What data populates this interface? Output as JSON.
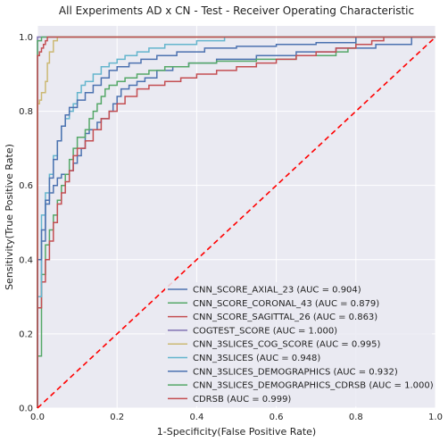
{
  "chart_data": {
    "type": "line",
    "title": "All Experiments AD x CN - Test - Receiver Operating Characteristic",
    "xlabel": "1-Specificity(False Positive Rate)",
    "ylabel": "Sensitivity(True Positive Rate)",
    "xlim": [
      0,
      1
    ],
    "ylim": [
      0,
      1.03
    ],
    "x_ticks": [
      "0.0",
      "0.2",
      "0.4",
      "0.6",
      "0.8",
      "1.0"
    ],
    "y_ticks": [
      "0.0",
      "0.2",
      "0.4",
      "0.6",
      "0.8",
      "1.0"
    ],
    "grid": true,
    "background": "#eaeaf2",
    "legend_position": "lower-right",
    "series": [
      {
        "name": "CNN_SCORE_AXIAL_23 (AUC = 0.904)",
        "color": "#4c72b0",
        "points": [
          [
            0,
            0
          ],
          [
            0,
            0.3
          ],
          [
            0.01,
            0.38
          ],
          [
            0.01,
            0.45
          ],
          [
            0.02,
            0.5
          ],
          [
            0.02,
            0.55
          ],
          [
            0.03,
            0.58
          ],
          [
            0.04,
            0.6
          ],
          [
            0.05,
            0.62
          ],
          [
            0.06,
            0.63
          ],
          [
            0.08,
            0.64
          ],
          [
            0.09,
            0.66
          ],
          [
            0.1,
            0.68
          ],
          [
            0.11,
            0.7
          ],
          [
            0.12,
            0.74
          ],
          [
            0.13,
            0.75
          ],
          [
            0.15,
            0.77
          ],
          [
            0.16,
            0.78
          ],
          [
            0.18,
            0.8
          ],
          [
            0.19,
            0.82
          ],
          [
            0.2,
            0.84
          ],
          [
            0.21,
            0.86
          ],
          [
            0.23,
            0.87
          ],
          [
            0.25,
            0.88
          ],
          [
            0.27,
            0.89
          ],
          [
            0.3,
            0.91
          ],
          [
            0.34,
            0.92
          ],
          [
            0.38,
            0.93
          ],
          [
            0.45,
            0.94
          ],
          [
            0.55,
            0.95
          ],
          [
            0.65,
            0.96
          ],
          [
            0.75,
            0.97
          ],
          [
            0.85,
            0.98
          ],
          [
            0.94,
            0.985
          ],
          [
            0.94,
            1.0
          ],
          [
            1.0,
            1.0
          ]
        ]
      },
      {
        "name": "CNN_SCORE_CORONAL_43 (AUC = 0.879)",
        "color": "#55a868",
        "points": [
          [
            0,
            0
          ],
          [
            0,
            0.14
          ],
          [
            0.01,
            0.26
          ],
          [
            0.01,
            0.36
          ],
          [
            0.02,
            0.44
          ],
          [
            0.03,
            0.48
          ],
          [
            0.04,
            0.52
          ],
          [
            0.05,
            0.56
          ],
          [
            0.06,
            0.6
          ],
          [
            0.07,
            0.63
          ],
          [
            0.08,
            0.67
          ],
          [
            0.09,
            0.7
          ],
          [
            0.1,
            0.73
          ],
          [
            0.12,
            0.75
          ],
          [
            0.13,
            0.78
          ],
          [
            0.14,
            0.8
          ],
          [
            0.15,
            0.82
          ],
          [
            0.16,
            0.84
          ],
          [
            0.17,
            0.86
          ],
          [
            0.18,
            0.87
          ],
          [
            0.2,
            0.88
          ],
          [
            0.22,
            0.89
          ],
          [
            0.25,
            0.9
          ],
          [
            0.28,
            0.91
          ],
          [
            0.32,
            0.92
          ],
          [
            0.38,
            0.93
          ],
          [
            0.45,
            0.935
          ],
          [
            0.55,
            0.94
          ],
          [
            0.65,
            0.95
          ],
          [
            0.75,
            0.96
          ],
          [
            0.78,
            0.97
          ],
          [
            0.8,
            0.99
          ],
          [
            0.8,
            1.0
          ],
          [
            1.0,
            1.0
          ]
        ]
      },
      {
        "name": "CNN_SCORE_SAGITTAL_26 (AUC = 0.863)",
        "color": "#c44e52",
        "points": [
          [
            0,
            0
          ],
          [
            0,
            0.27
          ],
          [
            0.01,
            0.34
          ],
          [
            0.02,
            0.4
          ],
          [
            0.03,
            0.45
          ],
          [
            0.04,
            0.5
          ],
          [
            0.05,
            0.55
          ],
          [
            0.06,
            0.58
          ],
          [
            0.07,
            0.61
          ],
          [
            0.08,
            0.64
          ],
          [
            0.09,
            0.68
          ],
          [
            0.1,
            0.7
          ],
          [
            0.12,
            0.72
          ],
          [
            0.14,
            0.75
          ],
          [
            0.16,
            0.78
          ],
          [
            0.18,
            0.8
          ],
          [
            0.2,
            0.82
          ],
          [
            0.22,
            0.84
          ],
          [
            0.25,
            0.86
          ],
          [
            0.28,
            0.87
          ],
          [
            0.32,
            0.88
          ],
          [
            0.36,
            0.89
          ],
          [
            0.4,
            0.9
          ],
          [
            0.45,
            0.91
          ],
          [
            0.5,
            0.92
          ],
          [
            0.55,
            0.93
          ],
          [
            0.6,
            0.94
          ],
          [
            0.65,
            0.95
          ],
          [
            0.7,
            0.96
          ],
          [
            0.75,
            0.97
          ],
          [
            0.8,
            0.98
          ],
          [
            0.84,
            0.99
          ],
          [
            0.87,
            0.99
          ],
          [
            0.87,
            1.0
          ],
          [
            1.0,
            1.0
          ]
        ]
      },
      {
        "name": "COGTEST_SCORE (AUC = 1.000)",
        "color": "#8172b2",
        "points": [
          [
            0,
            0
          ],
          [
            0,
            1.0
          ],
          [
            1.0,
            1.0
          ]
        ]
      },
      {
        "name": "CNN_3SLICES_COG_SCORE (AUC = 0.995)",
        "color": "#ccb974",
        "points": [
          [
            0,
            0
          ],
          [
            0,
            0.82
          ],
          [
            0.005,
            0.83
          ],
          [
            0.01,
            0.85
          ],
          [
            0.02,
            0.88
          ],
          [
            0.025,
            0.93
          ],
          [
            0.03,
            0.96
          ],
          [
            0.04,
            0.99
          ],
          [
            0.05,
            1.0
          ],
          [
            1.0,
            1.0
          ]
        ]
      },
      {
        "name": "CNN_3SLICES (AUC = 0.948)",
        "color": "#64b5cd",
        "points": [
          [
            0,
            0
          ],
          [
            0,
            0.3
          ],
          [
            0.01,
            0.45
          ],
          [
            0.01,
            0.52
          ],
          [
            0.02,
            0.58
          ],
          [
            0.03,
            0.63
          ],
          [
            0.04,
            0.68
          ],
          [
            0.05,
            0.72
          ],
          [
            0.06,
            0.76
          ],
          [
            0.07,
            0.78
          ],
          [
            0.08,
            0.8
          ],
          [
            0.09,
            0.82
          ],
          [
            0.1,
            0.85
          ],
          [
            0.11,
            0.87
          ],
          [
            0.12,
            0.88
          ],
          [
            0.14,
            0.9
          ],
          [
            0.16,
            0.92
          ],
          [
            0.18,
            0.93
          ],
          [
            0.2,
            0.94
          ],
          [
            0.22,
            0.95
          ],
          [
            0.25,
            0.96
          ],
          [
            0.28,
            0.97
          ],
          [
            0.32,
            0.98
          ],
          [
            0.4,
            0.99
          ],
          [
            0.47,
            0.99
          ],
          [
            0.47,
            1.0
          ],
          [
            1.0,
            1.0
          ]
        ]
      },
      {
        "name": "CNN_3SLICES_DEMOGRAPHICS (AUC = 0.932)",
        "color": "#4c72b0",
        "points": [
          [
            0,
            0
          ],
          [
            0,
            0.4
          ],
          [
            0.01,
            0.48
          ],
          [
            0.02,
            0.56
          ],
          [
            0.03,
            0.62
          ],
          [
            0.04,
            0.67
          ],
          [
            0.05,
            0.72
          ],
          [
            0.06,
            0.76
          ],
          [
            0.07,
            0.79
          ],
          [
            0.08,
            0.81
          ],
          [
            0.1,
            0.83
          ],
          [
            0.12,
            0.85
          ],
          [
            0.14,
            0.87
          ],
          [
            0.16,
            0.89
          ],
          [
            0.18,
            0.91
          ],
          [
            0.2,
            0.92
          ],
          [
            0.23,
            0.93
          ],
          [
            0.26,
            0.94
          ],
          [
            0.3,
            0.95
          ],
          [
            0.35,
            0.96
          ],
          [
            0.42,
            0.97
          ],
          [
            0.5,
            0.975
          ],
          [
            0.6,
            0.98
          ],
          [
            0.7,
            0.985
          ],
          [
            0.8,
            0.99
          ],
          [
            0.8,
            1.0
          ],
          [
            1.0,
            1.0
          ]
        ]
      },
      {
        "name": "CNN_3SLICES_DEMOGRAPHICS_CDRSB (AUC = 1.000)",
        "color": "#55a868",
        "points": [
          [
            0,
            0
          ],
          [
            0,
            0.99
          ],
          [
            0.01,
            1.0
          ],
          [
            1.0,
            1.0
          ]
        ]
      },
      {
        "name": "CDRSB (AUC = 0.999)",
        "color": "#c44e52",
        "points": [
          [
            0,
            0
          ],
          [
            0,
            0.95
          ],
          [
            0.005,
            0.96
          ],
          [
            0.01,
            0.97
          ],
          [
            0.015,
            0.98
          ],
          [
            0.02,
            0.99
          ],
          [
            0.025,
            1.0
          ],
          [
            1.0,
            1.0
          ]
        ]
      }
    ],
    "reference_line": {
      "color": "#ff0000",
      "style": "dashed",
      "points": [
        [
          0,
          0
        ],
        [
          1,
          1
        ]
      ]
    }
  }
}
